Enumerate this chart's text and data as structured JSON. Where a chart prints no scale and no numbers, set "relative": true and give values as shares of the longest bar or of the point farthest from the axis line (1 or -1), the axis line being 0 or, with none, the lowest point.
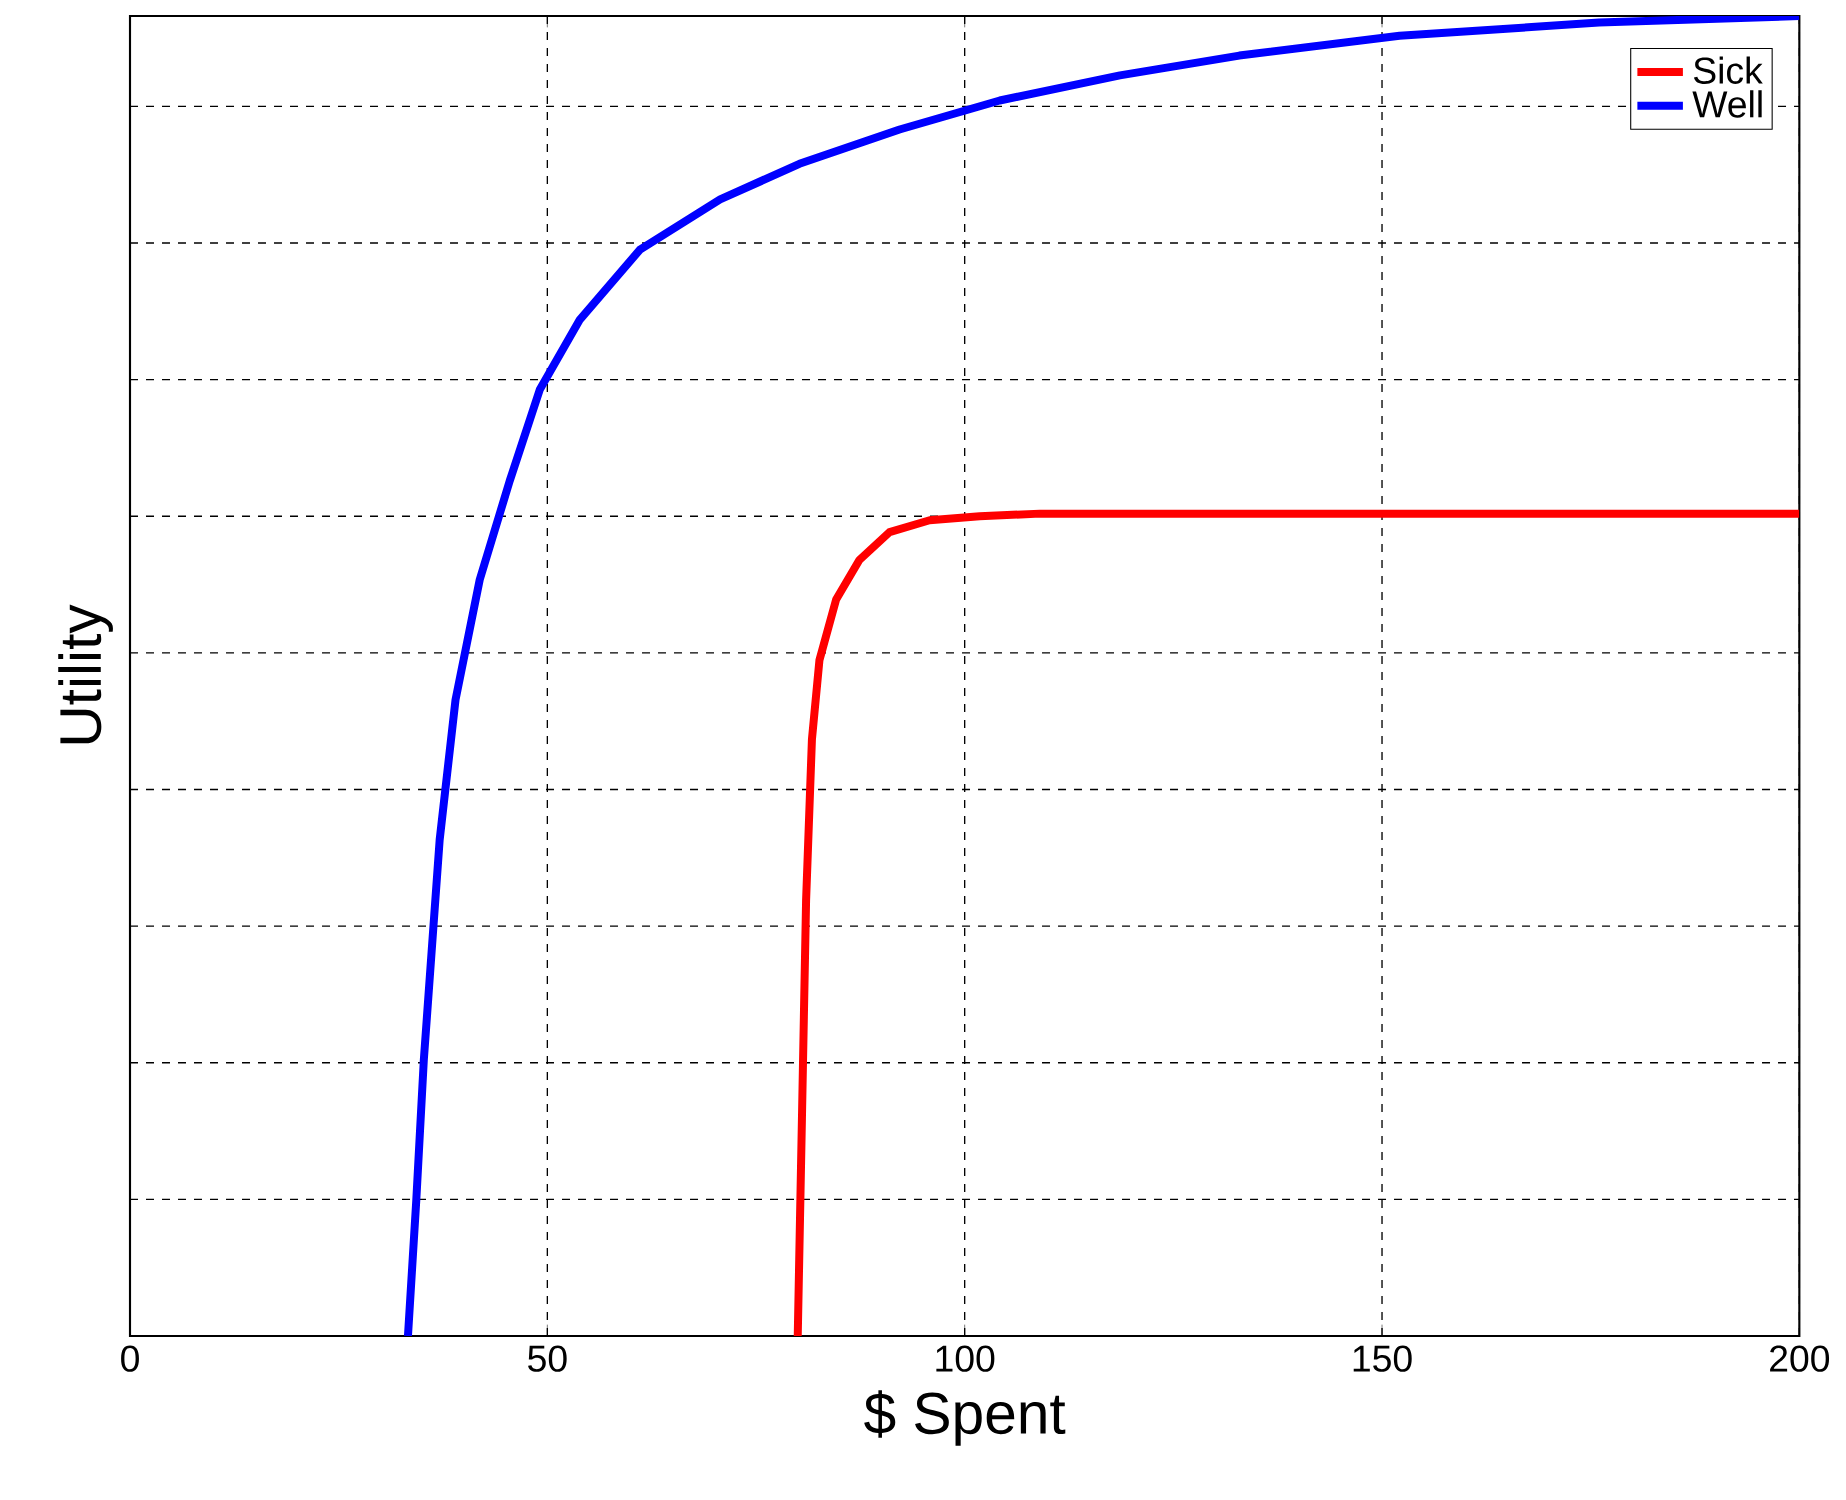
{
  "chart_data": {
    "type": "line",
    "xlabel": "$ Spent",
    "ylabel": "Utility",
    "relative": true,
    "xlim": [
      0,
      200
    ],
    "xticks": [
      0,
      50,
      100,
      150,
      200
    ],
    "grid": true,
    "legend": "top right",
    "series": [
      {
        "name": "Sick",
        "color": "#ff0000",
        "x": [
          80,
          80.5,
          81,
          81.7,
          82.6,
          84.6,
          87.4,
          91,
          95.8,
          101.8,
          109,
          200
        ],
        "values": [
          0,
          0.164,
          0.33,
          0.452,
          0.512,
          0.558,
          0.588,
          0.609,
          0.618,
          0.621,
          0.623,
          0.623
        ]
      },
      {
        "name": "Well",
        "color": "#0000ff",
        "x": [
          33.3,
          34.3,
          35.2,
          37.1,
          39,
          41.9,
          45.5,
          49.1,
          53.9,
          61.1,
          70.7,
          80.2,
          92.2,
          104.2,
          118.6,
          132.9,
          152.1,
          176,
          200
        ],
        "values": [
          0,
          0.103,
          0.209,
          0.376,
          0.482,
          0.573,
          0.648,
          0.717,
          0.77,
          0.823,
          0.861,
          0.888,
          0.914,
          0.936,
          0.955,
          0.97,
          0.985,
          0.995,
          1
        ]
      }
    ]
  }
}
